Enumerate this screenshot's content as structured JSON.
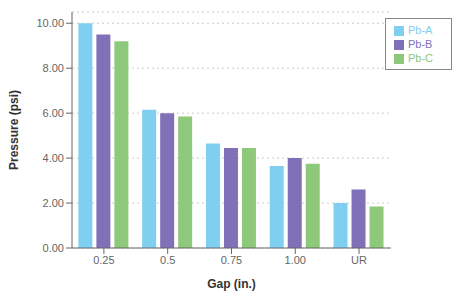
{
  "chart_data": {
    "type": "bar",
    "categories": [
      "0.25",
      "0.5",
      "0.75",
      "1.00",
      "UR"
    ],
    "series": [
      {
        "name": "Pb-A",
        "color": "#7ecff0",
        "values": [
          10.0,
          6.15,
          4.65,
          3.65,
          2.0
        ]
      },
      {
        "name": "Pb-B",
        "color": "#8070b8",
        "values": [
          9.5,
          6.0,
          4.45,
          4.0,
          2.6
        ]
      },
      {
        "name": "Pb-C",
        "color": "#8ec87a",
        "values": [
          9.2,
          5.85,
          4.45,
          3.75,
          1.85
        ]
      }
    ],
    "xlabel": "Gap (in.)",
    "ylabel": "Pressure (psi)",
    "ylim": [
      0,
      10.5
    ],
    "yticks": [
      {
        "value": 0.0,
        "label": "0.00"
      },
      {
        "value": 2.0,
        "label": "2.00"
      },
      {
        "value": 4.0,
        "label": "4.00"
      },
      {
        "value": 6.0,
        "label": "6.00"
      },
      {
        "value": 8.0,
        "label": "8.00"
      },
      {
        "value": 10.0,
        "label": "10.00"
      }
    ],
    "grid": true,
    "legend": "upper right"
  }
}
